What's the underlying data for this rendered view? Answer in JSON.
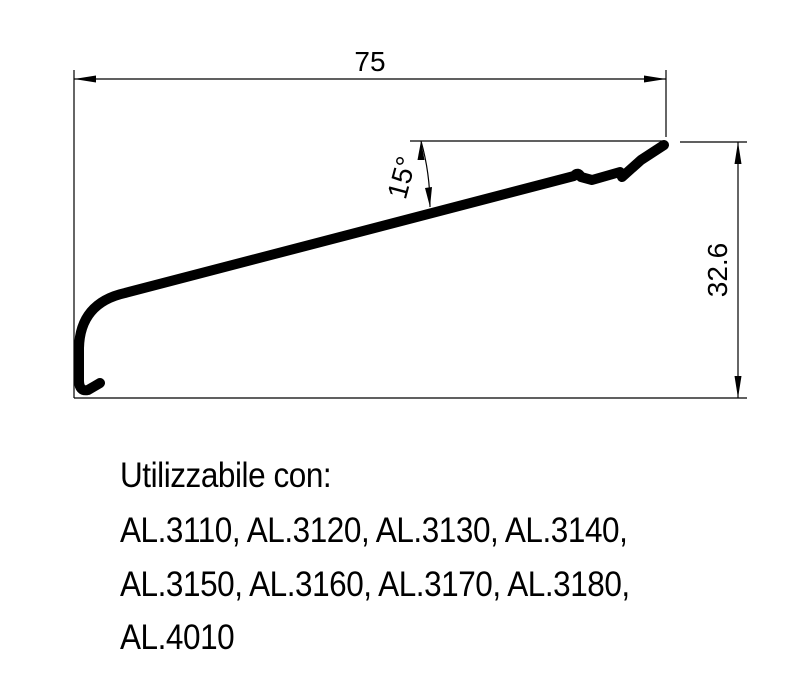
{
  "dimensions": {
    "width_label": "75",
    "height_label": "32.6",
    "angle_label": "15°"
  },
  "note": {
    "heading": "Utilizzabile con:",
    "line_1": "AL.3110, AL.3120, AL.3130, AL.3140,",
    "line_2": "AL.3150, AL.3160, AL.3170, AL.3180,",
    "line_3": "AL.4010"
  },
  "colors": {
    "ink": "#000000",
    "background": "#ffffff"
  }
}
